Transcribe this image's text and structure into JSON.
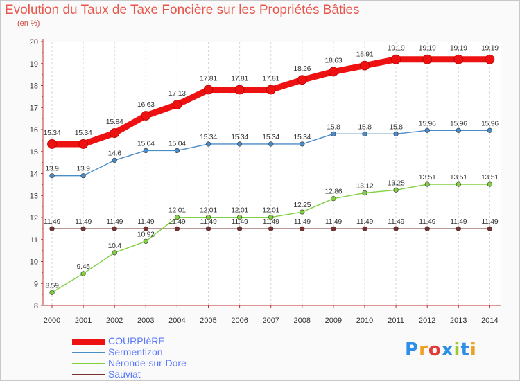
{
  "title": "Evolution du Taux de Taxe Foncière sur les Propriétés Bâties",
  "unit_label": "(en %)",
  "brand": "Proxiti",
  "colors": {
    "title": "#e8564b",
    "axis": "#c03030",
    "legend_text": "#5a78ff",
    "logo_letters": [
      "#2e8fe8",
      "#f0a020",
      "#e03c3c",
      "#2e8fe8",
      "#9bc830",
      "#2e8fe8",
      "#f0a020"
    ]
  },
  "chart_data": {
    "type": "line",
    "title": "Evolution du Taux de Taxe Foncière sur les Propriétés Bâties",
    "ylabel": "(en %)",
    "ylim": [
      8,
      20
    ],
    "yticks": [
      8,
      9,
      10,
      11,
      12,
      13,
      14,
      15,
      16,
      17,
      18,
      19,
      20
    ],
    "categories": [
      "2000",
      "2001",
      "2002",
      "2003",
      "2004",
      "2005",
      "2006",
      "2007",
      "2008",
      "2009",
      "2010",
      "2011",
      "2012",
      "2013",
      "2014"
    ],
    "legend_position": "bottom-left",
    "grid": "vertical-dashed",
    "series": [
      {
        "name": "COURPIèRE",
        "color": "#ee1111",
        "emphasis": true,
        "values": [
          15.34,
          15.34,
          15.84,
          16.63,
          17.13,
          17.81,
          17.81,
          17.81,
          18.26,
          18.63,
          18.91,
          19.19,
          19.19,
          19.19,
          19.19
        ],
        "labels": [
          "15.34",
          "15.34",
          "15.84",
          "16.63",
          "17.13",
          "17.81",
          "17.81",
          "17.81",
          "18.26",
          "18.63",
          "18.91",
          "19.19",
          "19.19",
          "19.19",
          "19.19"
        ]
      },
      {
        "name": "Sermentizon",
        "color": "#4a8cc8",
        "emphasis": false,
        "values": [
          13.9,
          13.9,
          14.6,
          15.04,
          15.04,
          15.34,
          15.34,
          15.34,
          15.34,
          15.8,
          15.8,
          15.8,
          15.96,
          15.96,
          15.96
        ],
        "labels": [
          "13.9",
          "13.9",
          "14.6",
          "15.04",
          "15.04",
          "15.34",
          "15.34",
          "15.34",
          "15.34",
          "15.8",
          "15.8",
          "15.8",
          "15.96",
          "15.96",
          "15.96"
        ]
      },
      {
        "name": "Néronde-sur-Dore",
        "color": "#80d040",
        "emphasis": false,
        "values": [
          8.59,
          9.45,
          10.4,
          10.92,
          12.01,
          12.01,
          12.01,
          12.01,
          12.25,
          12.86,
          13.12,
          13.25,
          13.51,
          13.51,
          13.51
        ],
        "labels": [
          "8.59",
          "9.45",
          "10.4",
          "10.92",
          "12.01",
          "12.01",
          "12.01",
          "12.01",
          "12.25",
          "12.86",
          "13.12",
          "13.25",
          "13.51",
          "13.51",
          "13.51"
        ]
      },
      {
        "name": "Sauviat",
        "color": "#7a3030",
        "emphasis": false,
        "values": [
          11.49,
          11.49,
          11.49,
          11.49,
          11.49,
          11.49,
          11.49,
          11.49,
          11.49,
          11.49,
          11.49,
          11.49,
          11.49,
          11.49,
          11.49
        ],
        "labels": [
          "11.49",
          "11.49",
          "11.49",
          "11.49",
          "11.49",
          "11.49",
          "11.49",
          "11.49",
          "11.49",
          "11.49",
          "11.49",
          "11.49",
          "11.49",
          "11.49",
          "11.49"
        ]
      }
    ]
  }
}
